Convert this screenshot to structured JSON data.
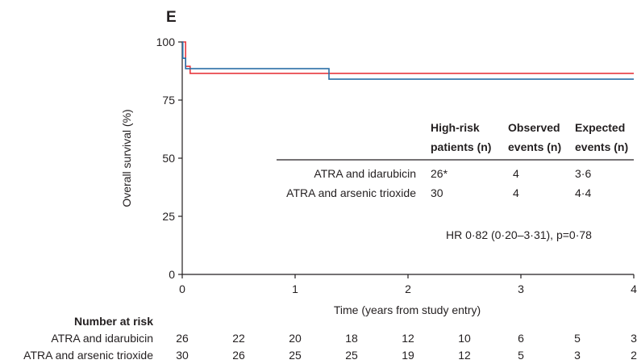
{
  "panel_label": "E",
  "chart_data": {
    "type": "line",
    "xlabel": "Time (years from study entry)",
    "ylabel": "Overall survival (%)",
    "xlim": [
      0,
      4
    ],
    "ylim": [
      0,
      100
    ],
    "x_ticks": [
      "0",
      "1",
      "2",
      "3",
      "4"
    ],
    "y_ticks": [
      "0",
      "25",
      "50",
      "75",
      "100"
    ],
    "grid": false,
    "series": [
      {
        "name": "ATRA and idarubicin",
        "color": "#e8393f",
        "steps": [
          [
            0,
            100
          ],
          [
            0.03,
            100
          ],
          [
            0.03,
            89.5
          ],
          [
            0.07,
            89.5
          ],
          [
            0.07,
            86.5
          ],
          [
            4,
            86.5
          ]
        ]
      },
      {
        "name": "ATRA and arsenic trioxide",
        "color": "#2a6ea6",
        "steps": [
          [
            0,
            100
          ],
          [
            0.005,
            100
          ],
          [
            0.005,
            93
          ],
          [
            0.03,
            93
          ],
          [
            0.03,
            88.5
          ],
          [
            1.3,
            88.5
          ],
          [
            1.3,
            84
          ],
          [
            4,
            84
          ]
        ]
      }
    ],
    "table": {
      "headers": [
        [
          "High-risk",
          "patients (n)"
        ],
        [
          "Observed",
          "events (n)"
        ],
        [
          "Expected",
          "events (n)"
        ]
      ],
      "rows": [
        {
          "label": "ATRA and idarubicin",
          "patients": "26*",
          "observed": "4",
          "expected": "3·6"
        },
        {
          "label": "ATRA and arsenic trioxide",
          "patients": "30",
          "observed": "4",
          "expected": "4·4"
        }
      ],
      "hr_text": "HR 0·82 (0·20–3·31), p=0·78"
    },
    "risk_table": {
      "title": "Number at risk",
      "rows": [
        {
          "label": "ATRA and idarubicin",
          "values": [
            "26",
            "22",
            "20",
            "18",
            "12",
            "10",
            "6",
            "5",
            "3"
          ]
        },
        {
          "label": "ATRA and arsenic trioxide",
          "values": [
            "30",
            "26",
            "25",
            "25",
            "19",
            "12",
            "5",
            "3",
            "2"
          ]
        }
      ]
    }
  }
}
